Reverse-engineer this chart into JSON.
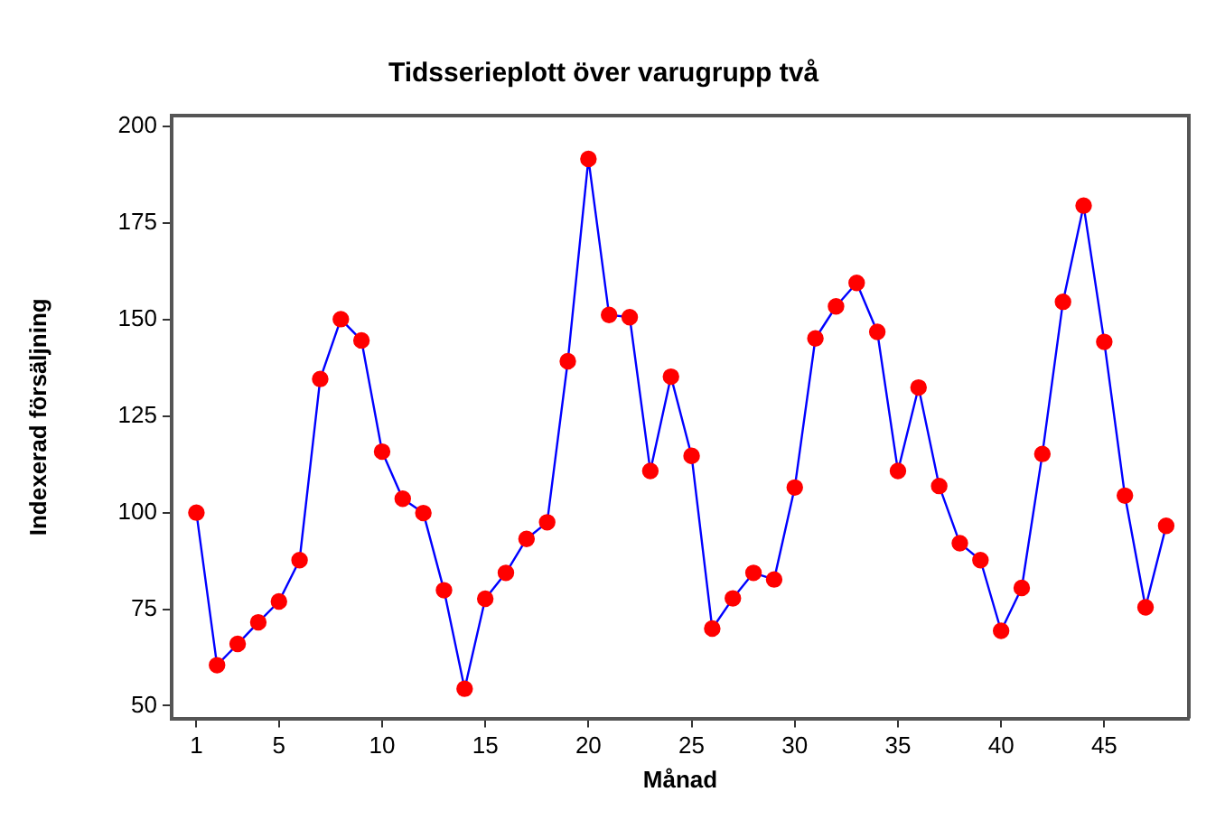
{
  "chart_data": {
    "type": "line",
    "title": "Tidsserieplott över varugrupp två",
    "xlabel": "Månad",
    "ylabel": "Indexerad försäljning",
    "x": [
      1,
      2,
      3,
      4,
      5,
      6,
      7,
      8,
      9,
      10,
      11,
      12,
      13,
      14,
      15,
      16,
      17,
      18,
      19,
      20,
      21,
      22,
      23,
      24,
      25,
      26,
      27,
      28,
      29,
      30,
      31,
      32,
      33,
      34,
      35,
      36,
      37,
      38,
      39,
      40,
      41,
      42,
      43,
      44,
      45,
      46,
      47,
      48
    ],
    "series": [
      {
        "color": "#0000ff",
        "colors": [
          "#ff0000",
          "#ff0000",
          "#ff0000",
          "#ff0000",
          "#ff0000",
          "#ff0000",
          "#ff0000",
          "#ff0000",
          "#ff0000",
          "#ff0000",
          "#ff0000",
          "#ff0000",
          "#ff0000",
          "#ff0000",
          "#ff0000",
          "#ff0000",
          "#ff0000",
          "#ff0000",
          "#ff0000",
          "#ff0000",
          "#ff0000",
          "#ff0000",
          "#ff0000",
          "#ff0000",
          "#ff0000",
          "#ff0000",
          "#ff0000",
          "#ff0000",
          "#ff0000",
          "#ff0000",
          "#ff0000",
          "#ff0000",
          "#ff0000",
          "#ff0000",
          "#ff0000",
          "#ff0000",
          "#ff0000",
          "#ff0000",
          "#ff0000",
          "#ff0000",
          "#ff0000",
          "#ff0000",
          "#ff0000",
          "#ff0000",
          "#ff0000",
          "#ff0000",
          "#ff0000",
          "#ff0000"
        ],
        "values": [
          100,
          60.5,
          66,
          71.6,
          77,
          87.7,
          134.6,
          150.1,
          144.6,
          115.8,
          103.6,
          99.9,
          79.9,
          54.4,
          77.7,
          84.4,
          93.2,
          97.5,
          139.2,
          191.6,
          151.2,
          150.6,
          110.8,
          135.2,
          114.7,
          70,
          77.8,
          84.4,
          82.7,
          106.5,
          145.1,
          153.4,
          159.5,
          146.8,
          110.8,
          132.4,
          106.9,
          92.1,
          87.7,
          69.4,
          80.5,
          115.2,
          154.6,
          179.5,
          144.2,
          104.4,
          75.5,
          96.6
        ]
      }
    ],
    "xlim": [
      -0.2,
      49.1
    ],
    "xticks": [
      1,
      5,
      10,
      15,
      20,
      25,
      30,
      35,
      40,
      45
    ],
    "ylim": [
      46.7,
      202.8
    ],
    "yticks": [
      50,
      75,
      100,
      125,
      150,
      175,
      200
    ],
    "marker": "circle",
    "line_style": "solid",
    "grid": false,
    "legend": false
  }
}
